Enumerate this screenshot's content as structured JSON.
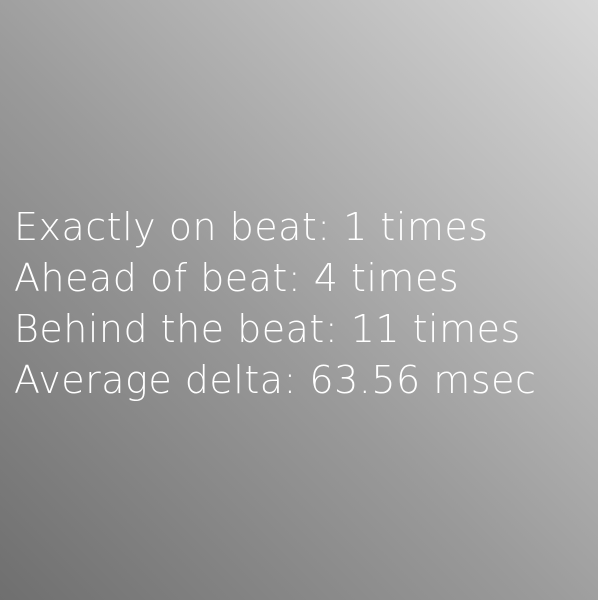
{
  "stats": {
    "exactly_on_beat": "Exactly on beat: 1 times",
    "ahead_of_beat": "Ahead of beat: 4 times",
    "behind_the_beat": "Behind the beat: 11 times",
    "average_delta": "Average delta: 63.56 msec"
  }
}
